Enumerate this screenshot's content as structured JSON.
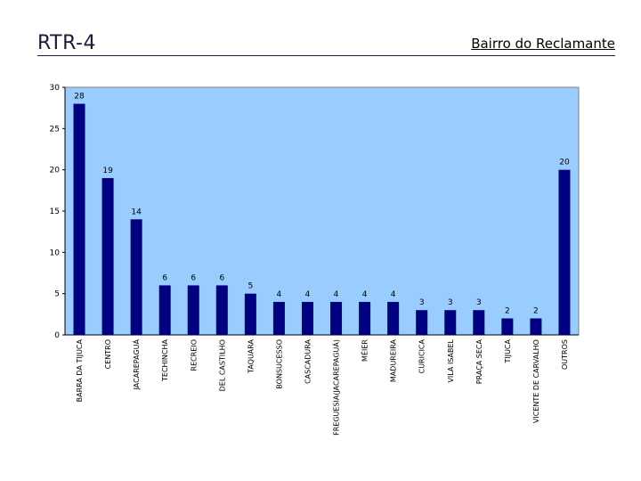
{
  "slide": {
    "title": "RTR-4",
    "subtitle": "Bairro do Reclamante"
  },
  "chart_data": {
    "type": "bar",
    "categories": [
      "BARRA DA TIJUCA",
      "CENTRO",
      "JACAREPAGUÁ",
      "TECHINCHA",
      "RECREIO",
      "DEL CASTILHO",
      "TAQUARA",
      "BONSUCESSO",
      "CASCADURA",
      "FREGUESIA(JACAREPAGUÁ)",
      "MÉIER",
      "MADUREIRA",
      "CURICICA",
      "VILA ISABEL",
      "PRAÇA SECA",
      "TIJUCA",
      "VICENTE DE CARVALHO",
      "OUTROS"
    ],
    "values": [
      28,
      19,
      14,
      6,
      6,
      6,
      5,
      4,
      4,
      4,
      4,
      4,
      3,
      3,
      3,
      2,
      2,
      20
    ],
    "ylim": [
      0,
      30
    ],
    "yticks": [
      0,
      5,
      10,
      15,
      20,
      25,
      30
    ],
    "data_labels": true,
    "grid": false,
    "colors": {
      "plot_background": "#99ccff",
      "bar": "#000080"
    }
  }
}
